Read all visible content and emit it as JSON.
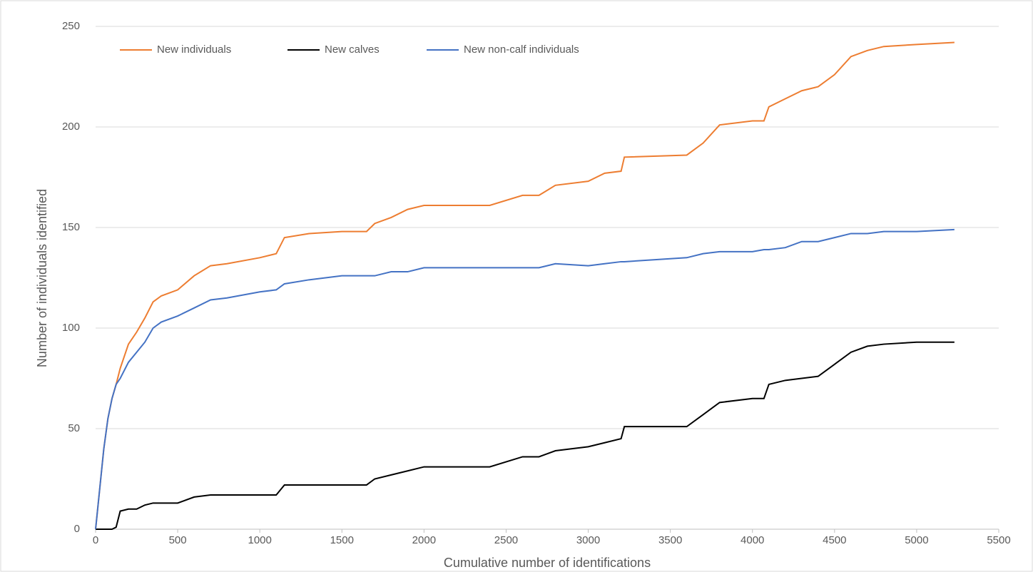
{
  "chart_data": {
    "type": "line",
    "x_label": "Cumulative number of identifications",
    "y_label": "Number of individuals identified",
    "x": [
      0,
      25,
      50,
      75,
      100,
      125,
      150,
      200,
      250,
      300,
      350,
      400,
      500,
      600,
      700,
      800,
      1000,
      1100,
      1150,
      1300,
      1500,
      1650,
      1700,
      1800,
      1900,
      2000,
      2400,
      2600,
      2700,
      2800,
      3000,
      3100,
      3200,
      3220,
      3600,
      3700,
      3800,
      4000,
      4070,
      4100,
      4200,
      4300,
      4400,
      4500,
      4600,
      4700,
      4800,
      5000,
      5230
    ],
    "series": [
      {
        "name": "New individuals",
        "color": "#ed7d31",
        "values": [
          0,
          20,
          40,
          55,
          65,
          72,
          80,
          92,
          98,
          105,
          113,
          116,
          119,
          126,
          131,
          132,
          135,
          137,
          145,
          147,
          148,
          148,
          152,
          155,
          159,
          161,
          161,
          166,
          166,
          171,
          173,
          177,
          178,
          185,
          186,
          192,
          201,
          203,
          203,
          210,
          214,
          218,
          220,
          226,
          235,
          238,
          240,
          241,
          242
        ]
      },
      {
        "name": "New calves",
        "color": "#000000",
        "values": [
          0,
          0,
          0,
          0,
          0,
          1,
          9,
          10,
          10,
          12,
          13,
          13,
          13,
          16,
          17,
          17,
          17,
          17,
          22,
          22,
          22,
          22,
          25,
          27,
          29,
          31,
          31,
          36,
          36,
          39,
          41,
          43,
          45,
          51,
          51,
          57,
          63,
          65,
          65,
          72,
          74,
          75,
          76,
          82,
          88,
          91,
          92,
          93,
          93
        ]
      },
      {
        "name": "New non-calf individuals",
        "color": "#4472c4",
        "values": [
          0,
          20,
          40,
          55,
          65,
          72,
          75,
          83,
          88,
          93,
          100,
          103,
          106,
          110,
          114,
          115,
          118,
          119,
          122,
          124,
          126,
          126,
          126,
          128,
          128,
          130,
          130,
          130,
          130,
          132,
          131,
          132,
          133,
          133,
          135,
          137,
          138,
          138,
          139,
          139,
          140,
          143,
          143,
          145,
          147,
          147,
          148,
          148,
          149
        ]
      }
    ],
    "xlim": [
      0,
      5500
    ],
    "xticks": [
      0,
      500,
      1000,
      1500,
      2000,
      2500,
      3000,
      3500,
      4000,
      4500,
      5000,
      5500
    ],
    "ylim": [
      0,
      250
    ],
    "yticks": [
      0,
      50,
      100,
      150,
      200,
      250
    ],
    "grid": true,
    "legend": "top-left"
  }
}
